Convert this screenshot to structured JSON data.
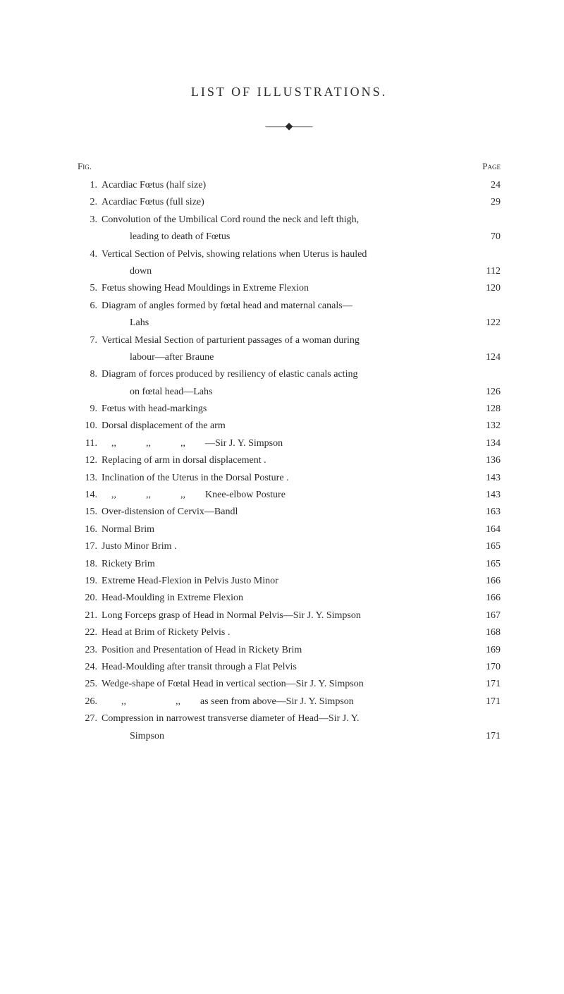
{
  "title": "LIST OF ILLUSTRATIONS.",
  "header_left": "Fig.",
  "header_right": "Page",
  "entries": [
    {
      "num": "1.",
      "text": "Acardiac Fœtus (half size)",
      "page": "24"
    },
    {
      "num": "2.",
      "text": "Acardiac Fœtus (full size)",
      "page": "29"
    },
    {
      "num": "3.",
      "text": "Convolution of the Umbilical Cord round the neck and left thigh,",
      "cont": "leading to death of Fœtus",
      "page": "70"
    },
    {
      "num": "4.",
      "text": "Vertical Section of Pelvis, showing relations when Uterus is hauled",
      "cont": "down",
      "page": "112"
    },
    {
      "num": "5.",
      "text": "Fœtus showing Head Mouldings in Extreme Flexion",
      "page": "120"
    },
    {
      "num": "6.",
      "text": "Diagram of angles formed by fœtal head and maternal canals—",
      "cont": "Lahs",
      "page": "122"
    },
    {
      "num": "7.",
      "text": "Vertical Mesial Section of parturient passages of a woman during",
      "cont": "labour—after Braune",
      "page": "124"
    },
    {
      "num": "8.",
      "text": "Diagram of forces produced by resiliency of elastic canals acting",
      "cont": "on fœtal head—Lahs",
      "page": "126"
    },
    {
      "num": "9.",
      "text": "Fœtus with head-markings",
      "page": "128"
    },
    {
      "num": "10.",
      "text": "Dorsal displacement of the arm",
      "page": "132"
    },
    {
      "num": "11.",
      "text": "    ,,            ,,            ,,        —Sir J. Y. Simpson",
      "page": "134"
    },
    {
      "num": "12.",
      "text": "Replacing of arm in dorsal displacement .",
      "page": "136"
    },
    {
      "num": "13.",
      "text": "Inclination of the Uterus in the Dorsal Posture .",
      "page": "143"
    },
    {
      "num": "14.",
      "text": "    ,,            ,,            ,,        Knee-elbow Posture",
      "page": "143"
    },
    {
      "num": "15.",
      "text": "Over-distension of Cervix—Bandl",
      "page": "163"
    },
    {
      "num": "16.",
      "text": "Normal Brim",
      "page": "164"
    },
    {
      "num": "17.",
      "text": "Justo Minor Brim .",
      "page": "165"
    },
    {
      "num": "18.",
      "text": "Rickety Brim",
      "page": "165"
    },
    {
      "num": "19.",
      "text": "Extreme Head-Flexion in Pelvis Justo Minor",
      "page": "166"
    },
    {
      "num": "20.",
      "text": "Head-Moulding in Extreme Flexion",
      "page": "166"
    },
    {
      "num": "21.",
      "text": "Long Forceps grasp of Head in Normal Pelvis—Sir J. Y. Simpson",
      "page": "167"
    },
    {
      "num": "22.",
      "text": "Head at Brim of Rickety Pelvis .",
      "page": "168"
    },
    {
      "num": "23.",
      "text": "Position and Presentation of Head in Rickety Brim",
      "page": "169"
    },
    {
      "num": "24.",
      "text": "Head-Moulding after transit through a Flat Pelvis",
      "page": "170"
    },
    {
      "num": "25.",
      "text": "Wedge-shape of Fœtal Head in vertical section—Sir J. Y. Simpson",
      "page": "171"
    },
    {
      "num": "26.",
      "text": "        ,,                    ,,        as seen from above—Sir J. Y. Simpson",
      "page": "171"
    },
    {
      "num": "27.",
      "text": "Compression in narrowest transverse diameter of Head—Sir J. Y.",
      "cont": "Simpson",
      "page": "171"
    }
  ]
}
